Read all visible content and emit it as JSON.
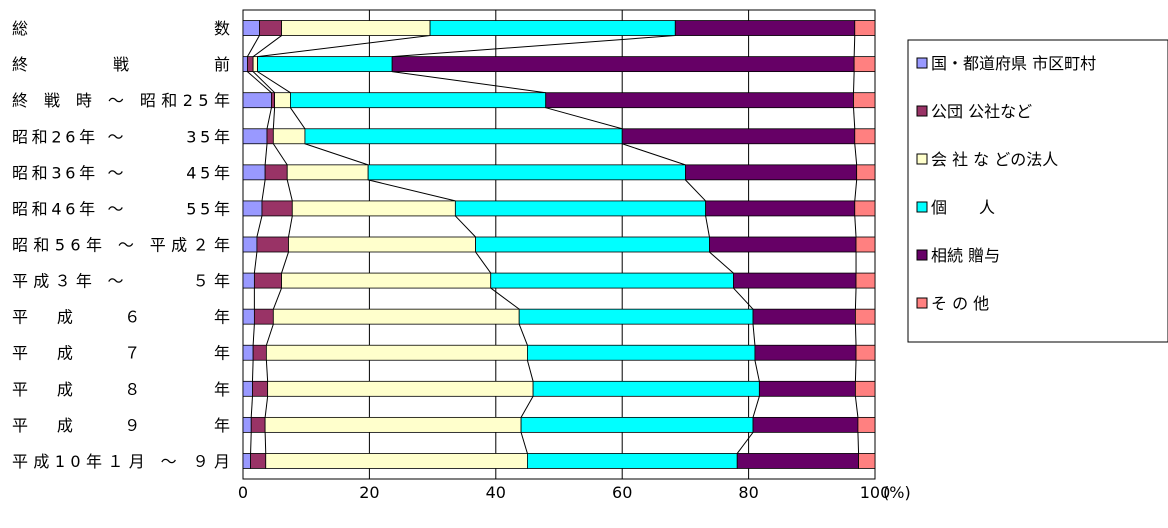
{
  "chart_data": {
    "type": "bar",
    "orientation": "horizontal",
    "stacked": true,
    "normalized": true,
    "unit_label": "(%)",
    "xlim": [
      0,
      100
    ],
    "x_ticks": [
      "0",
      "20",
      "40",
      "60",
      "80",
      "100"
    ],
    "grid": true,
    "legend_position": "right",
    "categories": [
      "総　　　　　　　数",
      "終　　　戦　　　前",
      "終 戦 時 ～ 昭和25年",
      "昭和26年 ～　　　35年",
      "昭和36年 ～　　　45年",
      "昭和46年 ～　　　55年",
      "昭和56年 ～ 平成２年",
      "平成３年 ～　　　５年",
      "平　成　　６　　　年",
      "平　成　　７　　　年",
      "平　成　　８　　　年",
      "平　成　　９　　　年",
      "平成10年１月 ～ ９月"
    ],
    "series": [
      {
        "name": "国・都道府県 市区町村",
        "color": "#9999ff",
        "values": [
          2.6,
          0.7,
          4.5,
          3.8,
          3.5,
          3.0,
          2.2,
          1.8,
          1.8,
          1.6,
          1.5,
          1.3,
          1.2
        ]
      },
      {
        "name": "公団 公社など",
        "color": "#993366",
        "values": [
          3.5,
          0.9,
          0.5,
          1.0,
          3.5,
          4.8,
          5.0,
          4.3,
          3.0,
          2.1,
          2.4,
          2.2,
          2.4
        ]
      },
      {
        "name": "会 社 な どの法人",
        "color": "#ffffcc",
        "values": [
          23.5,
          0.7,
          2.5,
          5.0,
          12.8,
          25.8,
          29.6,
          33.1,
          38.9,
          41.3,
          42.0,
          40.5,
          41.4
        ]
      },
      {
        "name": "個　　人",
        "color": "#00ffff",
        "values": [
          38.8,
          21.3,
          40.4,
          50.2,
          50.2,
          39.6,
          37.0,
          38.4,
          37.0,
          36.0,
          35.8,
          36.7,
          33.2
        ]
      },
      {
        "name": "相続 贈与",
        "color": "#660066",
        "values": [
          28.4,
          73.1,
          48.7,
          36.8,
          27.1,
          23.6,
          23.2,
          19.4,
          16.2,
          16.0,
          15.2,
          16.6,
          19.2
        ]
      },
      {
        "name": "そ の 他",
        "color": "#ff8080",
        "values": [
          3.2,
          3.3,
          3.4,
          3.2,
          2.9,
          3.2,
          3.0,
          3.0,
          3.1,
          3.0,
          3.1,
          2.7,
          2.6
        ]
      }
    ]
  }
}
